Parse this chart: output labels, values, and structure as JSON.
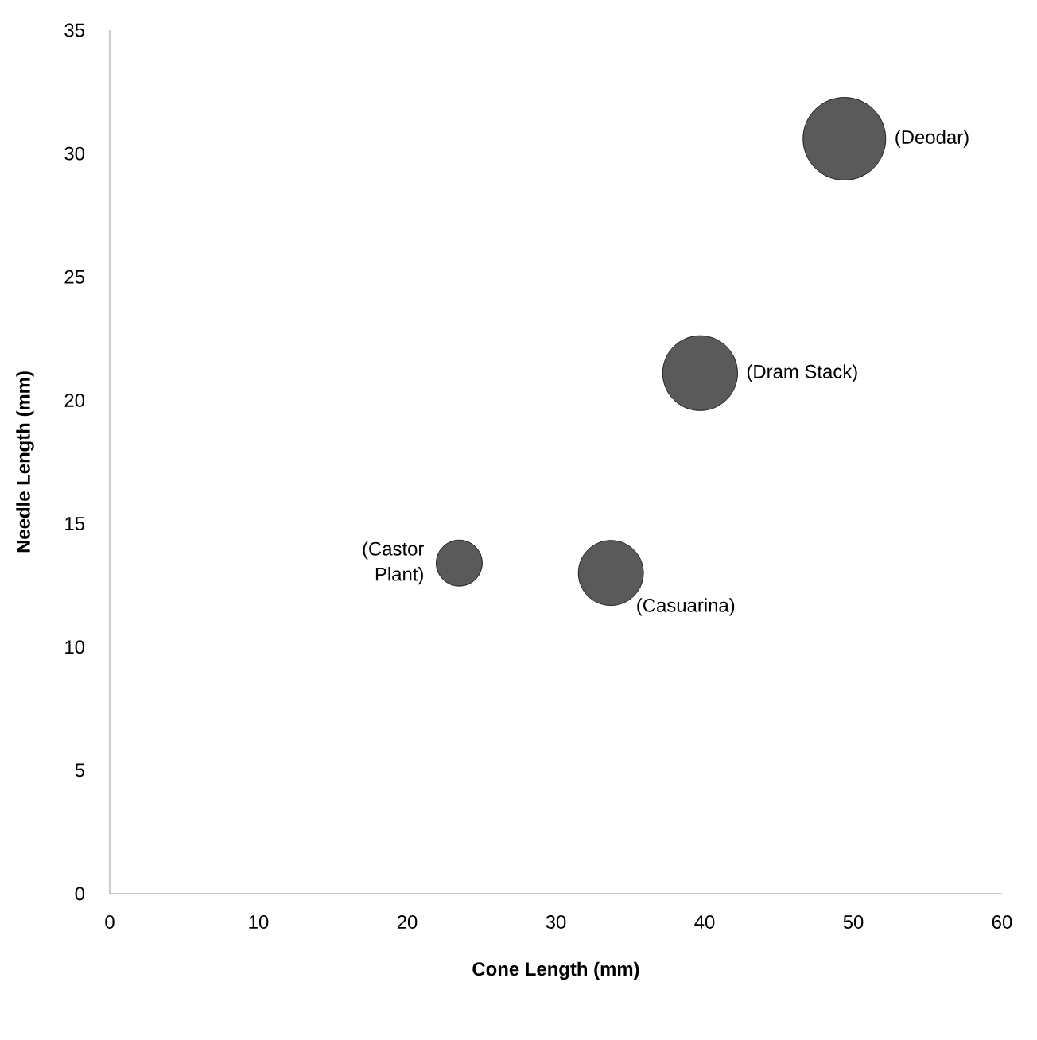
{
  "chart_data": {
    "type": "bubble",
    "xlabel": "Cone Length (mm)",
    "ylabel": "Needle Length (mm)",
    "series": [
      {
        "color": "#5a5a5a",
        "x": [
          23.5,
          33.7,
          39.7,
          49.4
        ],
        "values": [
          13.4,
          13.0,
          21.1,
          30.6
        ],
        "sizes": [
          0.31,
          0.62,
          0.82,
          1
        ]
      }
    ],
    "annotations": [
      {
        "text": "(Castor Plant)",
        "x": 23.5,
        "y": 13.4
      },
      {
        "text": "(Casuarina)",
        "x": 33.7,
        "y": 13.0
      },
      {
        "text": "(Dram Stack)",
        "x": 39.7,
        "y": 21.1
      },
      {
        "text": "(Deodar)",
        "x": 49.4,
        "y": 30.6
      }
    ],
    "xlim": [
      0,
      60
    ],
    "xticks": [
      0,
      10,
      20,
      30,
      40,
      50,
      60
    ],
    "ylim": [
      0,
      35
    ],
    "yticks": [
      0,
      5,
      10,
      15,
      20,
      25,
      30,
      35
    ],
    "grid": false
  }
}
